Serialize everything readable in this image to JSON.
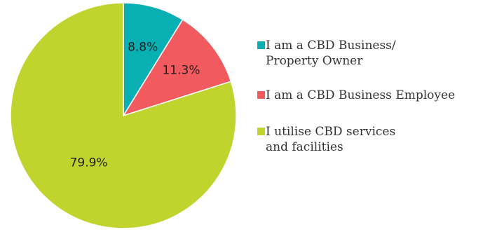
{
  "chart_data": {
    "type": "pie",
    "slices": [
      {
        "label": "I am a CBD Business/\nProperty Owner",
        "value": 8.8,
        "value_label": "8.8%",
        "color": "#08b0b3"
      },
      {
        "label": "I am a CBD Business Employee",
        "value": 11.3,
        "value_label": "11.3%",
        "color": "#f15b5f"
      },
      {
        "label": "I utilise CBD services\nand facilities",
        "value": 79.9,
        "value_label": "79.9%",
        "color": "#c0d42d"
      }
    ],
    "legend_position": "right"
  }
}
